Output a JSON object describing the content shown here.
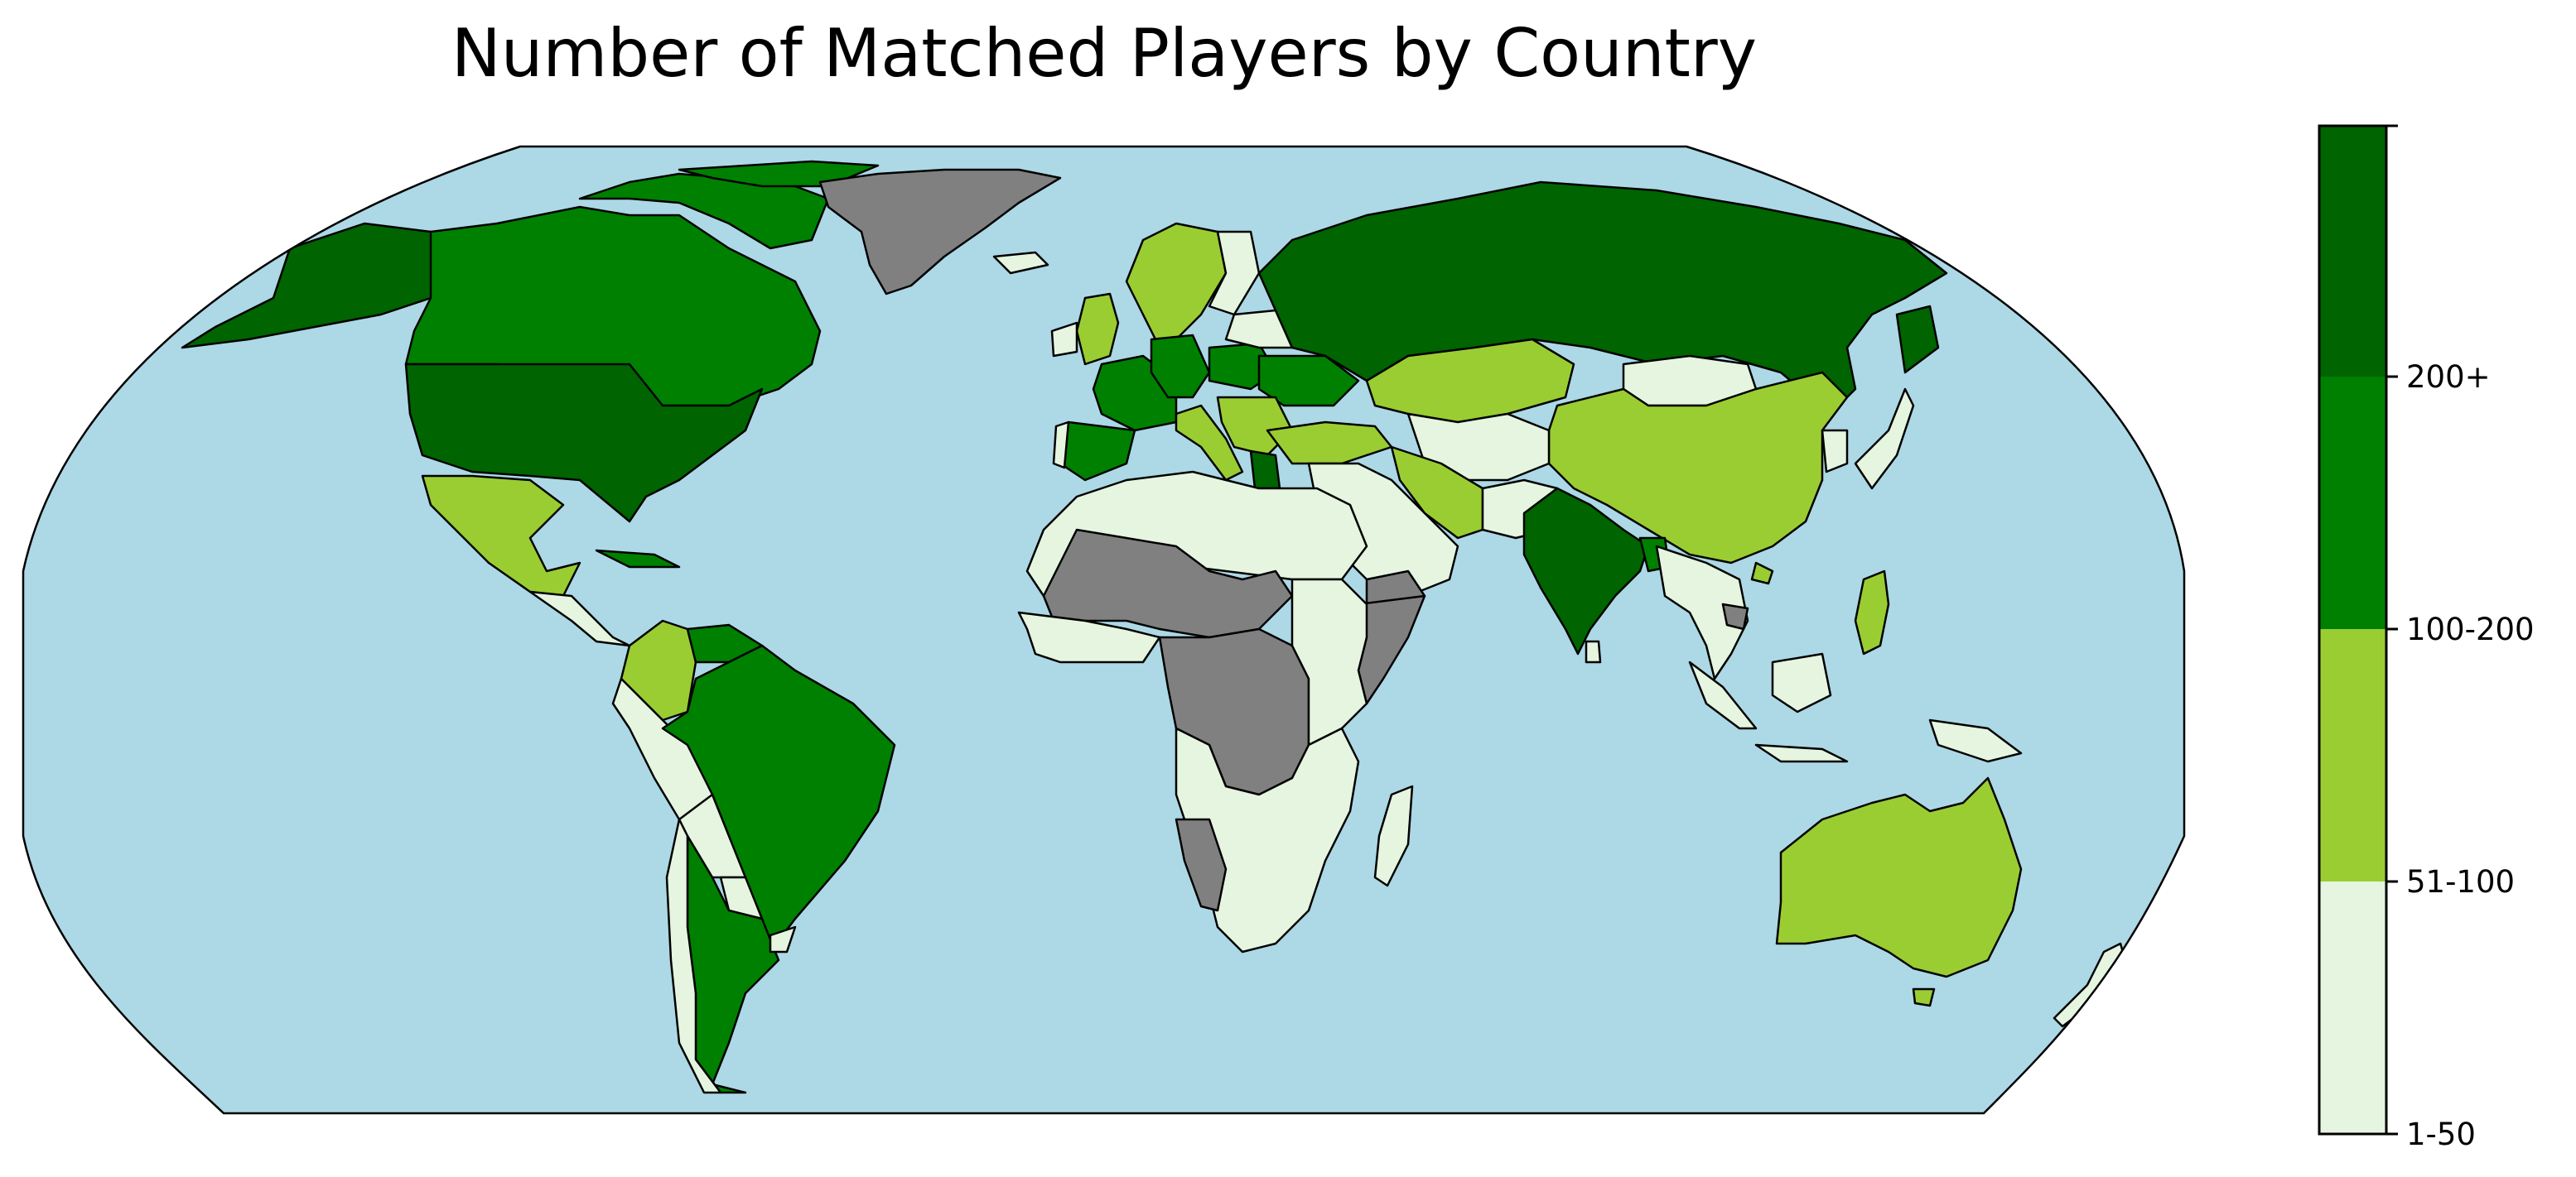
{
  "title": "Number of Matched Players by Country",
  "colors": {
    "ocean": "#add8e6",
    "no_data": "#808080",
    "border": "#000000",
    "cat_1_50": "#e5f5e0",
    "cat_51_100": "#9acd32",
    "cat_100_200": "#008000",
    "cat_200_plus": "#006400"
  },
  "colorbar": {
    "bins": [
      {
        "label": "1-50",
        "color": "#e5f5e0"
      },
      {
        "label": "51-100",
        "color": "#9acd32"
      },
      {
        "label": "100-200",
        "color": "#008000"
      },
      {
        "label": "200+",
        "color": "#006400"
      }
    ]
  },
  "regions": [
    {
      "name": "United States",
      "category": "200+"
    },
    {
      "name": "Canada",
      "category": "100-200"
    },
    {
      "name": "Alaska",
      "category": "200+"
    },
    {
      "name": "Greenland",
      "category": "no data"
    },
    {
      "name": "Mexico",
      "category": "51-100"
    },
    {
      "name": "Central America",
      "category": "1-50"
    },
    {
      "name": "Cuba",
      "category": "100-200"
    },
    {
      "name": "Colombia",
      "category": "51-100"
    },
    {
      "name": "Venezuela",
      "category": "100-200"
    },
    {
      "name": "Brazil",
      "category": "100-200"
    },
    {
      "name": "Argentina",
      "category": "100-200"
    },
    {
      "name": "Peru",
      "category": "1-50"
    },
    {
      "name": "Bolivia",
      "category": "1-50"
    },
    {
      "name": "Chile",
      "category": "1-50"
    },
    {
      "name": "Paraguay",
      "category": "1-50"
    },
    {
      "name": "Uruguay",
      "category": "1-50"
    },
    {
      "name": "United Kingdom",
      "category": "51-100"
    },
    {
      "name": "Ireland",
      "category": "1-50"
    },
    {
      "name": "France",
      "category": "100-200"
    },
    {
      "name": "Spain",
      "category": "100-200"
    },
    {
      "name": "Portugal",
      "category": "1-50"
    },
    {
      "name": "Germany",
      "category": "100-200"
    },
    {
      "name": "Poland",
      "category": "100-200"
    },
    {
      "name": "Italy",
      "category": "51-100"
    },
    {
      "name": "Scandinavia",
      "category": "51-100"
    },
    {
      "name": "Finland",
      "category": "1-50"
    },
    {
      "name": "Ukraine",
      "category": "100-200"
    },
    {
      "name": "Balkans",
      "category": "51-100"
    },
    {
      "name": "Russia",
      "category": "200+"
    },
    {
      "name": "Kazakhstan",
      "category": "51-100"
    },
    {
      "name": "Turkey",
      "category": "51-100"
    },
    {
      "name": "Iran",
      "category": "51-100"
    },
    {
      "name": "Middle East",
      "category": "1-50"
    },
    {
      "name": "Yemen",
      "category": "no data"
    },
    {
      "name": "Central Asia",
      "category": "1-50"
    },
    {
      "name": "Mongolia",
      "category": "1-50"
    },
    {
      "name": "China",
      "category": "51-100"
    },
    {
      "name": "India",
      "category": "200+"
    },
    {
      "name": "Bangladesh",
      "category": "100-200"
    },
    {
      "name": "Southeast Asia",
      "category": "1-50"
    },
    {
      "name": "Cambodia",
      "category": "no data"
    },
    {
      "name": "Vietnam",
      "category": "51-100"
    },
    {
      "name": "Philippines",
      "category": "51-100"
    },
    {
      "name": "Indonesia",
      "category": "1-50"
    },
    {
      "name": "Japan",
      "category": "1-50"
    },
    {
      "name": "Australia",
      "category": "51-100"
    },
    {
      "name": "New Zealand",
      "category": "1-50"
    },
    {
      "name": "North Africa",
      "category": "1-50"
    },
    {
      "name": "Sahel",
      "category": "no data"
    },
    {
      "name": "West Africa",
      "category": "1-50"
    },
    {
      "name": "Central Africa",
      "category": "no data"
    },
    {
      "name": "Somalia",
      "category": "no data"
    },
    {
      "name": "East Africa",
      "category": "1-50"
    },
    {
      "name": "Southern Africa",
      "category": "1-50"
    },
    {
      "name": "Namibia",
      "category": "no data"
    },
    {
      "name": "Madagascar",
      "category": "1-50"
    }
  ]
}
